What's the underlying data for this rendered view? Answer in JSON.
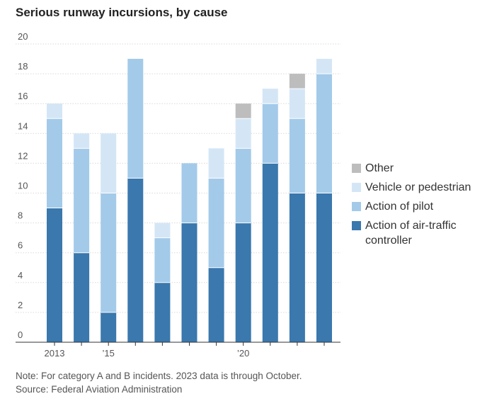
{
  "chart_data": {
    "type": "bar",
    "stacked": true,
    "title": "Serious runway incursions, by cause",
    "categories": [
      "2013",
      "2014",
      "2015",
      "2016",
      "2017",
      "2018",
      "2019",
      "2020",
      "2021",
      "2022",
      "2023"
    ],
    "x_tick_labels": [
      {
        "category": "2013",
        "label": "2013"
      },
      {
        "category": "2015",
        "label": "’15"
      },
      {
        "category": "2020",
        "label": "’20"
      }
    ],
    "series": [
      {
        "name": "Action of air-traffic controller",
        "color": "#3a78ad",
        "values": [
          9,
          6,
          2,
          11,
          4,
          8,
          5,
          8,
          12,
          10,
          10
        ]
      },
      {
        "name": "Action of pilot",
        "color": "#a3cae9",
        "values": [
          6,
          7,
          8,
          8,
          3,
          4,
          6,
          5,
          4,
          5,
          8
        ]
      },
      {
        "name": "Vehicle or pedestrian",
        "color": "#d4e6f6",
        "values": [
          1,
          1,
          4,
          0,
          1,
          0,
          2,
          2,
          1,
          2,
          1
        ]
      },
      {
        "name": "Other",
        "color": "#bdbdbd",
        "values": [
          0,
          0,
          0,
          0,
          0,
          0,
          0,
          1,
          0,
          1,
          0
        ]
      }
    ],
    "ylim": [
      0,
      20
    ],
    "y_ticks": [
      0,
      2,
      4,
      6,
      8,
      10,
      12,
      14,
      16,
      18,
      20
    ],
    "xlabel": "",
    "ylabel": "",
    "grid": true,
    "legend": {
      "position": "right",
      "items": [
        {
          "label": "Other",
          "color": "#bdbdbd"
        },
        {
          "label": "Vehicle or pedestrian",
          "color": "#d4e6f6"
        },
        {
          "label": "Action of pilot",
          "color": "#a3cae9"
        },
        {
          "label": "Action of air-traffic controller",
          "color": "#3a78ad"
        }
      ]
    }
  },
  "footer": {
    "note": "Note: For category A and B incidents. 2023 data is through October.",
    "source": "Source: Federal Aviation Administration"
  }
}
